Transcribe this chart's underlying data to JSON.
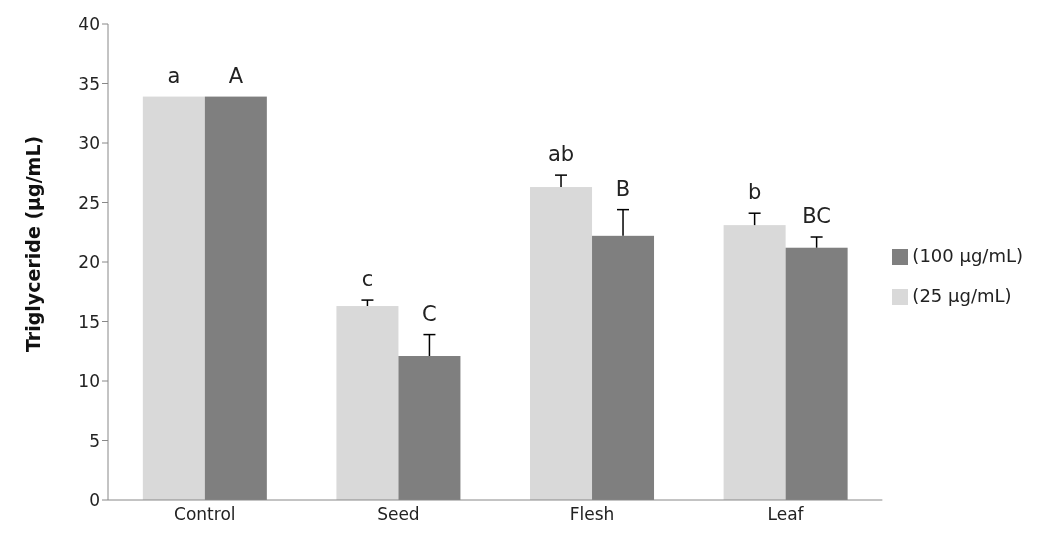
{
  "chart_data": {
    "type": "bar",
    "ylabel": "Triglyceride (µg/mL)",
    "categories": [
      "Control",
      "Seed",
      "Flesh",
      "Leaf"
    ],
    "series": [
      {
        "name": "(25 µg/mL)",
        "color": "#d9d9d9",
        "values": [
          33.9,
          16.3,
          26.3,
          23.1
        ],
        "errors": [
          null,
          [
            16.3,
            16.8
          ],
          [
            26.3,
            27.3
          ],
          [
            23.1,
            24.1
          ]
        ],
        "value_labels": [
          "a",
          "c",
          "ab",
          "b"
        ]
      },
      {
        "name": "(100 µg/mL)",
        "color": "#7f7f7f",
        "values": [
          33.9,
          12.1,
          22.2,
          21.2
        ],
        "errors": [
          null,
          [
            12.1,
            13.9
          ],
          [
            22.2,
            24.4
          ],
          [
            21.2,
            22.1
          ]
        ],
        "value_labels": [
          "A",
          "C",
          "B",
          "BC"
        ]
      }
    ],
    "ylim": [
      0,
      40
    ],
    "yticks": [
      0,
      5,
      10,
      15,
      20,
      25,
      30,
      35,
      40
    ],
    "grid": false,
    "legend": "right"
  }
}
